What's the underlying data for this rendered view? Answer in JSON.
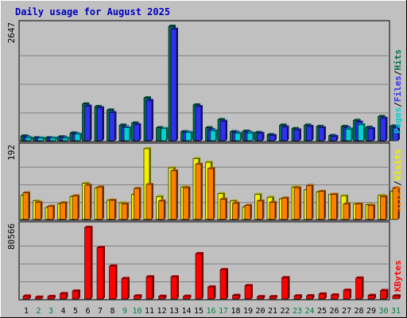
{
  "title": "Daily usage for August 2025",
  "colors": {
    "page_bg": "#c0c0c0",
    "plot_bg": "#c0c0c0",
    "grid": "#808080",
    "title": "#0000c0",
    "pages": "#00d0d0",
    "files": "#3030f0",
    "hits": "#007050",
    "sites": "#ff8000",
    "visits": "#f0f000",
    "kbytes": "#ff0000",
    "weekday_label": "#000000",
    "weekend_label": "#008040"
  },
  "right_labels": {
    "top": [
      "Pages",
      "Files",
      "Hits"
    ],
    "mid": [
      "Sites",
      "Visits"
    ],
    "bot": [
      "KBytes"
    ]
  },
  "chart_data": [
    {
      "type": "bar",
      "title": "",
      "ylabel": "2647",
      "ylim": [
        0,
        2647
      ],
      "categories": [
        "1",
        "2",
        "3",
        "4",
        "5",
        "6",
        "7",
        "8",
        "9",
        "10",
        "11",
        "12",
        "13",
        "14",
        "15",
        "16",
        "17",
        "18",
        "19",
        "20",
        "21",
        "22",
        "23",
        "24",
        "25",
        "26",
        "27",
        "28",
        "29",
        "30",
        "31"
      ],
      "weekend_days": [
        "2",
        "3",
        "9",
        "10",
        "16",
        "17",
        "23",
        "24",
        "30",
        "31"
      ],
      "series": [
        {
          "name": "Hits",
          "values": [
            110,
            70,
            70,
            90,
            180,
            850,
            790,
            710,
            360,
            410,
            990,
            300,
            2647,
            210,
            830,
            300,
            490,
            210,
            220,
            190,
            140,
            360,
            280,
            360,
            330,
            120,
            330,
            470,
            310,
            560,
            340
          ]
        },
        {
          "name": "Files",
          "values": [
            90,
            60,
            60,
            80,
            160,
            800,
            760,
            650,
            320,
            370,
            930,
            0,
            2580,
            200,
            790,
            260,
            450,
            190,
            200,
            170,
            120,
            320,
            250,
            330,
            300,
            100,
            300,
            430,
            280,
            520,
            310
          ]
        },
        {
          "name": "Pages",
          "values": [
            70,
            60,
            60,
            60,
            150,
            0,
            0,
            0,
            300,
            0,
            0,
            280,
            0,
            190,
            0,
            230,
            0,
            170,
            180,
            0,
            0,
            0,
            0,
            0,
            0,
            0,
            270,
            370,
            0,
            0,
            0
          ]
        }
      ]
    },
    {
      "type": "bar",
      "title": "",
      "ylabel": "192",
      "ylim": [
        0,
        192
      ],
      "categories": [
        "1",
        "2",
        "3",
        "4",
        "5",
        "6",
        "7",
        "8",
        "9",
        "10",
        "11",
        "12",
        "13",
        "14",
        "15",
        "16",
        "17",
        "18",
        "19",
        "20",
        "21",
        "22",
        "23",
        "24",
        "25",
        "26",
        "27",
        "28",
        "29",
        "30",
        "31"
      ],
      "series": [
        {
          "name": "Visits",
          "values": [
            65,
            50,
            32,
            42,
            62,
            98,
            85,
            52,
            45,
            68,
            192,
            62,
            140,
            88,
            165,
            155,
            70,
            50,
            34,
            68,
            60,
            56,
            88,
            80,
            75,
            68,
            64,
            42,
            40,
            65,
            76
          ]
        },
        {
          "name": "Sites",
          "values": [
            72,
            46,
            36,
            45,
            64,
            93,
            88,
            52,
            42,
            84,
            95,
            50,
            132,
            86,
            150,
            138,
            55,
            44,
            38,
            50,
            46,
            58,
            86,
            92,
            76,
            68,
            42,
            42,
            38,
            62,
            85
          ]
        }
      ]
    },
    {
      "type": "bar",
      "title": "",
      "ylabel": "80566",
      "ylim": [
        0,
        80566
      ],
      "categories": [
        "1",
        "2",
        "3",
        "4",
        "5",
        "6",
        "7",
        "8",
        "9",
        "10",
        "11",
        "12",
        "13",
        "14",
        "15",
        "16",
        "17",
        "18",
        "19",
        "20",
        "21",
        "22",
        "23",
        "24",
        "25",
        "26",
        "27",
        "28",
        "29",
        "30",
        "31"
      ],
      "series": [
        {
          "name": "KBytes",
          "values": [
            3200,
            2000,
            2800,
            6000,
            9000,
            80566,
            58000,
            37000,
            23000,
            3500,
            25000,
            3000,
            25000,
            3000,
            51000,
            13500,
            33000,
            4000,
            15000,
            2600,
            2600,
            24000,
            3500,
            3600,
            5600,
            4500,
            9800,
            23500,
            4000,
            9500,
            3500
          ]
        }
      ]
    }
  ]
}
